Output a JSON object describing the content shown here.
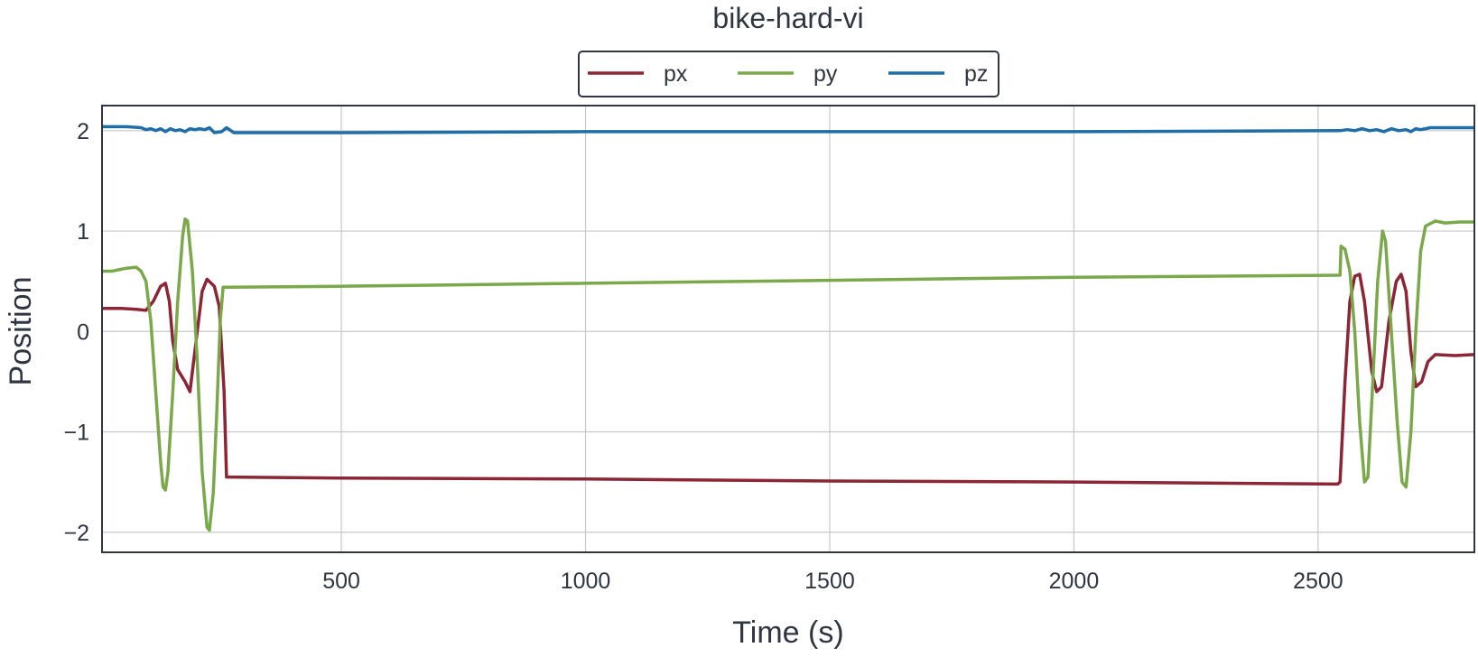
{
  "chart_data": {
    "type": "line",
    "title": "bike-hard-vi",
    "xlabel": "Time (s)",
    "ylabel": "Position",
    "xlim": [
      10,
      2820
    ],
    "ylim": [
      -2.2,
      2.25
    ],
    "x_ticks": [
      500,
      1000,
      1500,
      2000,
      2500
    ],
    "y_ticks": [
      -2,
      -1,
      0,
      1,
      2
    ],
    "x_tick_labels": [
      "500",
      "1000",
      "1500",
      "2000",
      "2500"
    ],
    "y_tick_labels": [
      "−2",
      "−1",
      "0",
      "1",
      "2"
    ],
    "grid": true,
    "legend_position": "top-center",
    "series": [
      {
        "name": "px",
        "color": "#8b2636",
        "points": [
          [
            10,
            0.23
          ],
          [
            50,
            0.23
          ],
          [
            80,
            0.22
          ],
          [
            100,
            0.21
          ],
          [
            115,
            0.3
          ],
          [
            130,
            0.45
          ],
          [
            140,
            0.48
          ],
          [
            148,
            0.3
          ],
          [
            155,
            -0.1
          ],
          [
            165,
            -0.38
          ],
          [
            180,
            -0.5
          ],
          [
            190,
            -0.6
          ],
          [
            200,
            -0.2
          ],
          [
            215,
            0.4
          ],
          [
            225,
            0.52
          ],
          [
            240,
            0.45
          ],
          [
            250,
            0.25
          ],
          [
            260,
            -0.6
          ],
          [
            265,
            -1.45
          ],
          [
            500,
            -1.46
          ],
          [
            1000,
            -1.47
          ],
          [
            1500,
            -1.49
          ],
          [
            2000,
            -1.5
          ],
          [
            2540,
            -1.52
          ],
          [
            2545,
            -1.5
          ],
          [
            2555,
            -0.5
          ],
          [
            2565,
            0.3
          ],
          [
            2575,
            0.55
          ],
          [
            2585,
            0.57
          ],
          [
            2595,
            0.3
          ],
          [
            2610,
            -0.4
          ],
          [
            2620,
            -0.6
          ],
          [
            2630,
            -0.55
          ],
          [
            2645,
            0.1
          ],
          [
            2660,
            0.5
          ],
          [
            2670,
            0.57
          ],
          [
            2680,
            0.4
          ],
          [
            2690,
            -0.2
          ],
          [
            2700,
            -0.55
          ],
          [
            2712,
            -0.5
          ],
          [
            2725,
            -0.3
          ],
          [
            2740,
            -0.23
          ],
          [
            2780,
            -0.24
          ],
          [
            2820,
            -0.23
          ]
        ]
      },
      {
        "name": "py",
        "color": "#7aa84a",
        "points": [
          [
            10,
            0.6
          ],
          [
            30,
            0.6
          ],
          [
            60,
            0.63
          ],
          [
            80,
            0.64
          ],
          [
            90,
            0.6
          ],
          [
            100,
            0.5
          ],
          [
            110,
            0.1
          ],
          [
            120,
            -0.6
          ],
          [
            130,
            -1.3
          ],
          [
            135,
            -1.55
          ],
          [
            140,
            -1.58
          ],
          [
            145,
            -1.4
          ],
          [
            155,
            -0.6
          ],
          [
            165,
            0.3
          ],
          [
            175,
            0.95
          ],
          [
            180,
            1.12
          ],
          [
            185,
            1.1
          ],
          [
            195,
            0.6
          ],
          [
            205,
            -0.3
          ],
          [
            215,
            -1.4
          ],
          [
            225,
            -1.95
          ],
          [
            230,
            -1.98
          ],
          [
            238,
            -1.6
          ],
          [
            245,
            -0.8
          ],
          [
            252,
            0.1
          ],
          [
            258,
            0.44
          ],
          [
            500,
            0.45
          ],
          [
            1000,
            0.48
          ],
          [
            1500,
            0.51
          ],
          [
            2000,
            0.54
          ],
          [
            2540,
            0.56
          ],
          [
            2545,
            0.56
          ],
          [
            2547,
            0.85
          ],
          [
            2555,
            0.82
          ],
          [
            2565,
            0.6
          ],
          [
            2575,
            0.0
          ],
          [
            2585,
            -0.9
          ],
          [
            2595,
            -1.5
          ],
          [
            2602,
            -1.45
          ],
          [
            2612,
            -0.5
          ],
          [
            2622,
            0.5
          ],
          [
            2632,
            1.0
          ],
          [
            2638,
            0.9
          ],
          [
            2650,
            0.0
          ],
          [
            2662,
            -0.9
          ],
          [
            2672,
            -1.5
          ],
          [
            2680,
            -1.55
          ],
          [
            2690,
            -1.0
          ],
          [
            2700,
            0.0
          ],
          [
            2710,
            0.8
          ],
          [
            2720,
            1.05
          ],
          [
            2740,
            1.1
          ],
          [
            2760,
            1.08
          ],
          [
            2790,
            1.09
          ],
          [
            2820,
            1.09
          ]
        ]
      },
      {
        "name": "pz",
        "color": "#1f6ea8",
        "points": [
          [
            10,
            2.04
          ],
          [
            60,
            2.04
          ],
          [
            90,
            2.03
          ],
          [
            100,
            2.01
          ],
          [
            110,
            2.02
          ],
          [
            120,
            2.0
          ],
          [
            130,
            2.02
          ],
          [
            140,
            1.99
          ],
          [
            150,
            2.02
          ],
          [
            160,
            2.0
          ],
          [
            170,
            2.01
          ],
          [
            180,
            1.99
          ],
          [
            190,
            2.02
          ],
          [
            200,
            2.01
          ],
          [
            210,
            2.02
          ],
          [
            220,
            2.01
          ],
          [
            230,
            2.03
          ],
          [
            240,
            1.98
          ],
          [
            255,
            1.99
          ],
          [
            265,
            2.03
          ],
          [
            280,
            1.98
          ],
          [
            500,
            1.98
          ],
          [
            1000,
            1.99
          ],
          [
            1500,
            1.99
          ],
          [
            2000,
            1.99
          ],
          [
            2545,
            2.0
          ],
          [
            2560,
            2.01
          ],
          [
            2575,
            2.0
          ],
          [
            2590,
            2.02
          ],
          [
            2605,
            2.0
          ],
          [
            2620,
            2.01
          ],
          [
            2635,
            1.99
          ],
          [
            2650,
            2.02
          ],
          [
            2665,
            2.0
          ],
          [
            2680,
            2.01
          ],
          [
            2690,
            1.99
          ],
          [
            2700,
            2.02
          ],
          [
            2710,
            2.01
          ],
          [
            2730,
            2.03
          ],
          [
            2780,
            2.03
          ],
          [
            2820,
            2.03
          ]
        ]
      }
    ]
  }
}
